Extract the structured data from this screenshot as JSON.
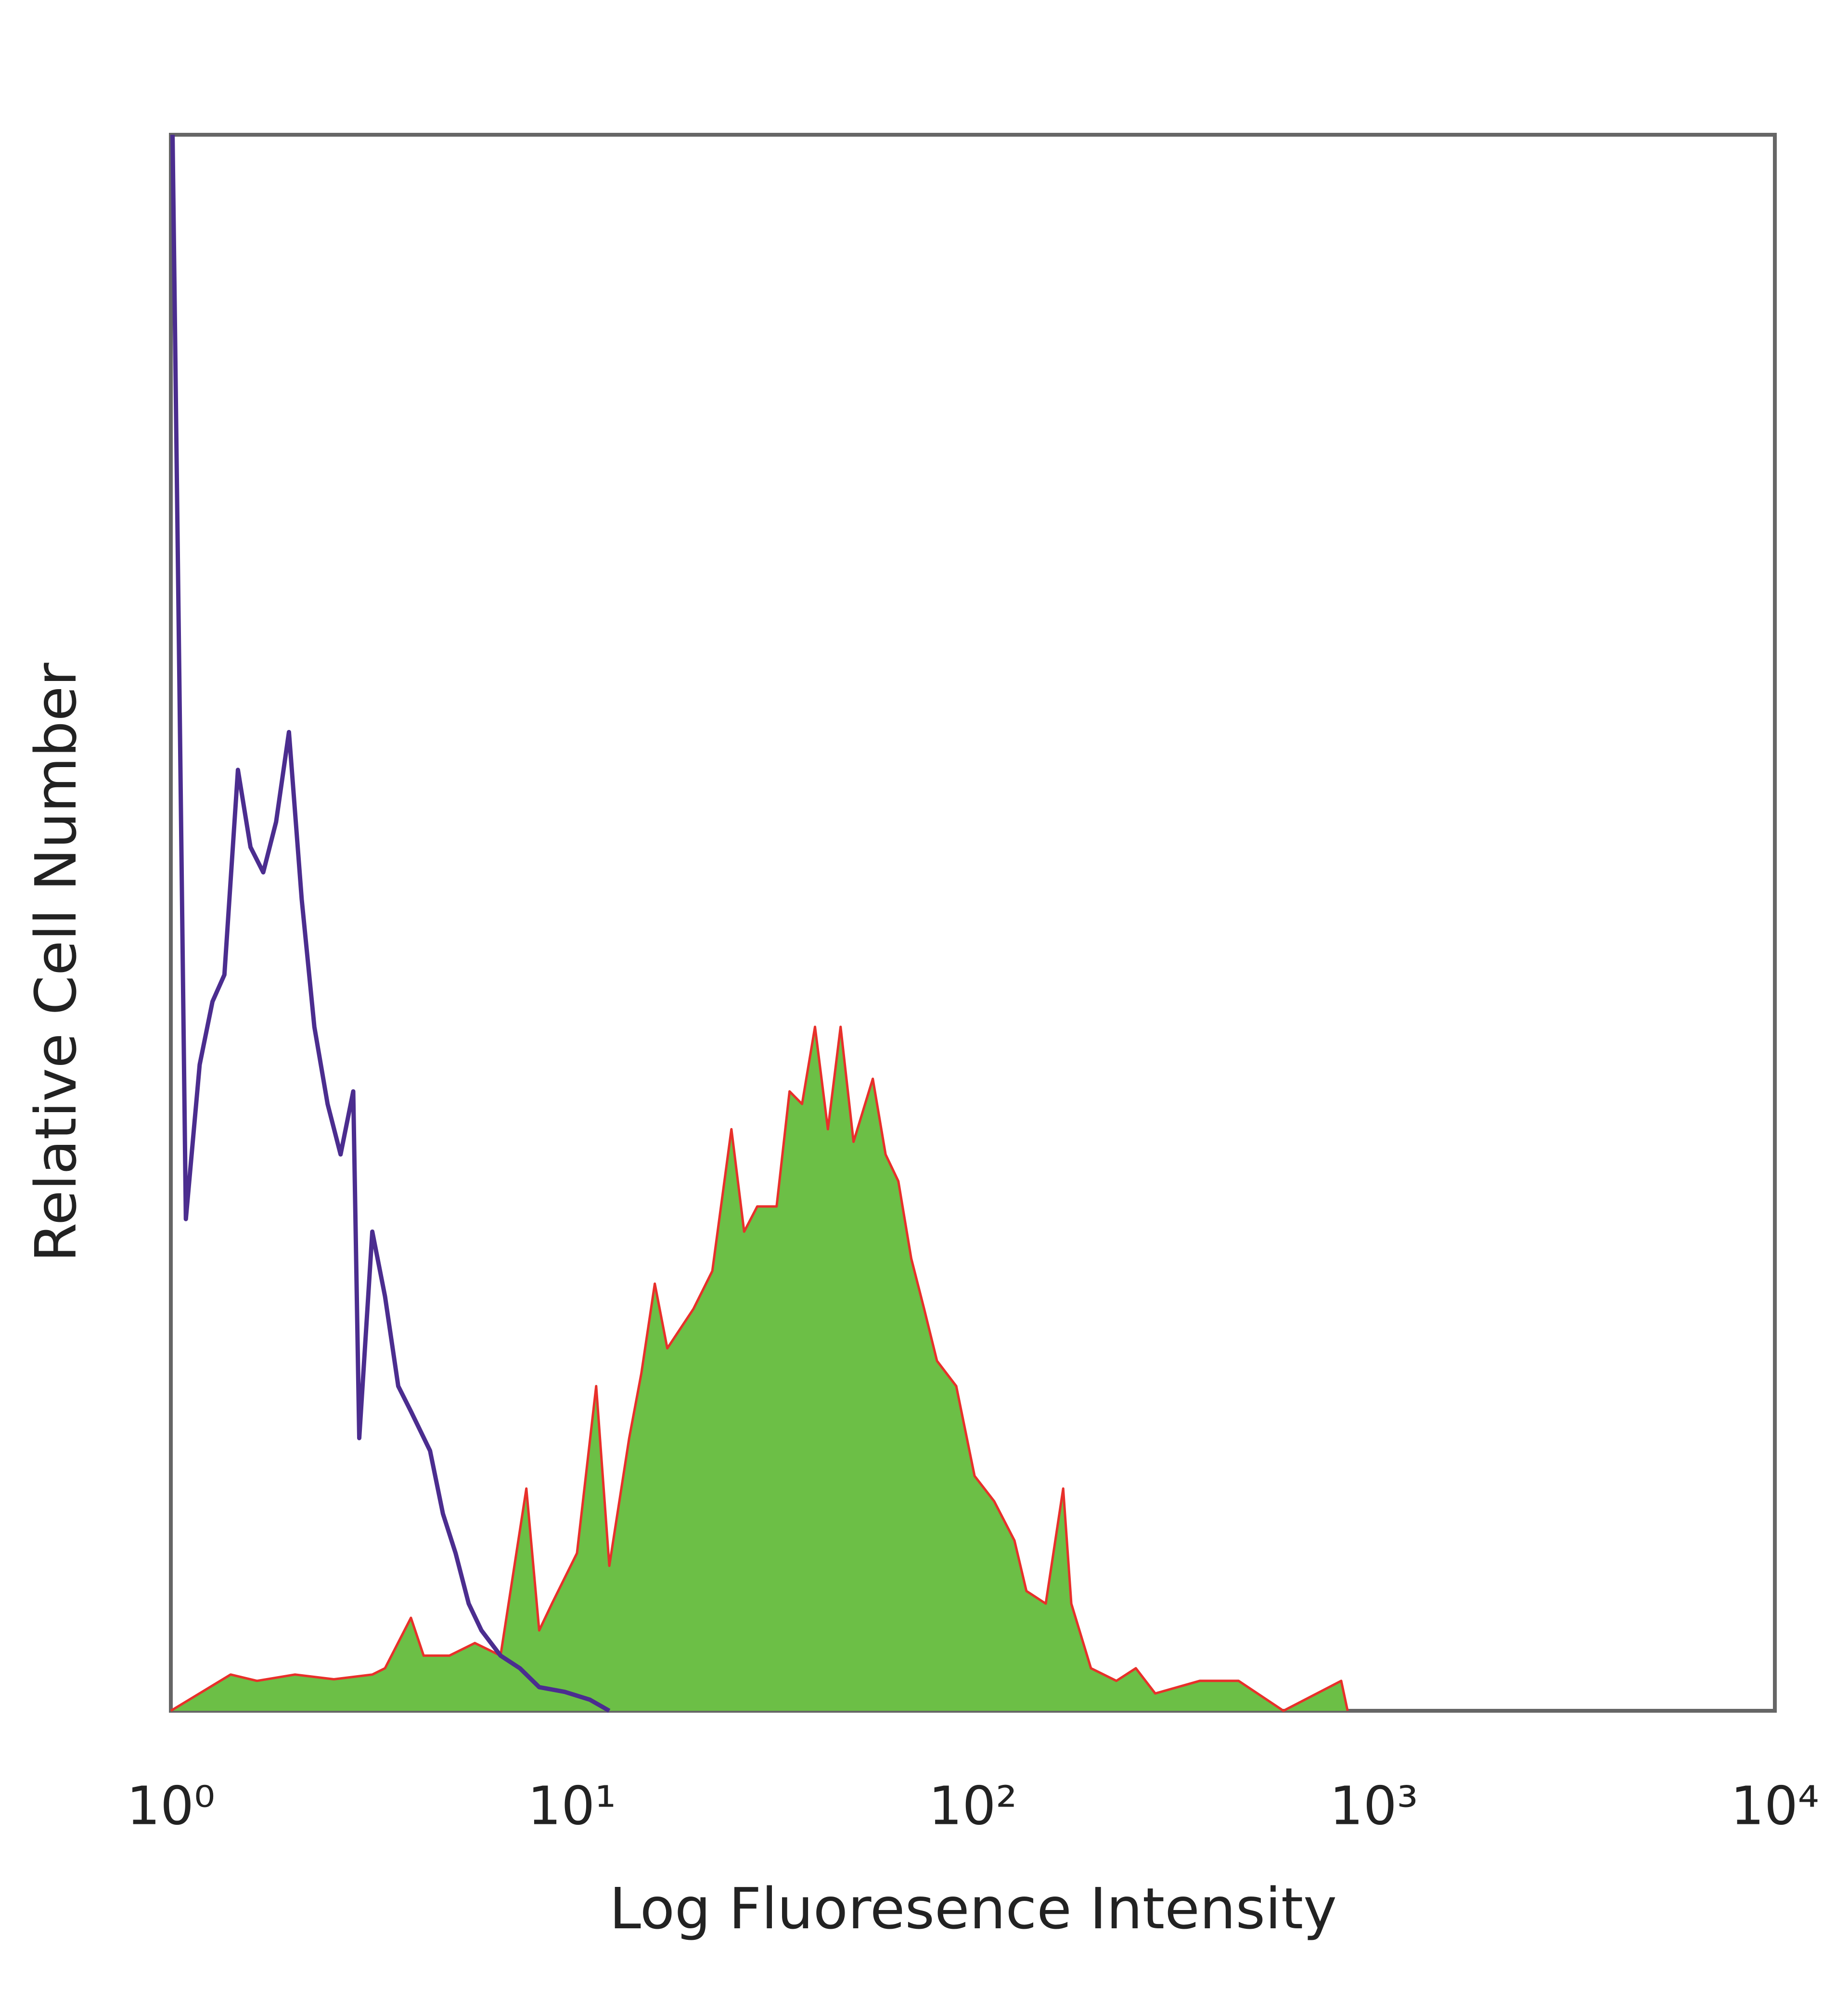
{
  "chart_data": {
    "type": "line",
    "xlabel": "Log Fluoresence Intensity",
    "ylabel": "Relative Cell Number",
    "xscale": "log",
    "xlim": [
      1,
      10000
    ],
    "xticks": [
      {
        "value": 1,
        "label": "10⁰"
      },
      {
        "value": 10,
        "label": "10¹"
      },
      {
        "value": 100,
        "label": "10²"
      },
      {
        "value": 1000,
        "label": "10³"
      },
      {
        "value": 10000,
        "label": "10⁴"
      }
    ],
    "ylim": [
      0,
      100
    ],
    "grid": false,
    "series": [
      {
        "color": "#e8302a",
        "fill": "#6cbf46",
        "x": [
          1.0,
          1.41,
          1.64,
          2.04,
          2.55,
          3.18,
          3.42,
          3.97,
          4.27,
          4.95,
          5.73,
          6.64,
          7.7,
          8.29,
          8.92,
          10.3,
          11.5,
          12.4,
          13.9,
          14.9,
          16.1,
          17.3,
          20.1,
          22.4,
          25.0,
          26.9,
          29.0,
          32.4,
          34.9,
          37.5,
          40.4,
          43.5,
          46.8,
          50.4,
          56.3,
          60.6,
          65.2,
          70.2,
          75.6,
          81.4,
          90.9,
          101,
          113,
          127,
          136,
          152,
          168,
          176,
          197,
          228,
          255,
          285,
          368,
          460,
          595,
          829,
          860
        ],
        "values": [
          0,
          2.3,
          1.9,
          2.3,
          2.0,
          2.3,
          2.7,
          5.9,
          3.5,
          3.5,
          4.3,
          3.5,
          14.1,
          5.1,
          6.8,
          10.0,
          20.6,
          9.2,
          17.3,
          21.4,
          27.1,
          23.0,
          25.5,
          27.9,
          36.9,
          30.4,
          32.0,
          32.0,
          39.3,
          38.5,
          43.4,
          36.9,
          43.4,
          36.1,
          40.1,
          35.3,
          33.6,
          28.7,
          25.5,
          22.2,
          20.6,
          14.9,
          13.3,
          10.8,
          7.6,
          6.8,
          14.1,
          6.8,
          2.7,
          1.9,
          2.7,
          1.1,
          1.9,
          1.9,
          0,
          1.9,
          0
        ]
      },
      {
        "color": "#4b2d8f",
        "x": [
          1.01,
          1.05,
          1.09,
          1.18,
          1.27,
          1.36,
          1.47,
          1.58,
          1.7,
          1.83,
          1.97,
          2.12,
          2.28,
          2.46,
          2.65,
          2.85,
          2.95,
          3.18,
          3.42,
          3.69,
          3.97,
          4.43,
          4.77,
          5.13,
          5.53,
          5.95,
          6.64,
          7.42,
          8.29,
          9.6,
          11.1,
          12.4
        ],
        "values": [
          100,
          65.4,
          31.2,
          41.0,
          45.0,
          46.7,
          59.7,
          54.8,
          53.2,
          56.4,
          62.1,
          51.5,
          43.4,
          38.5,
          35.3,
          39.3,
          17.3,
          30.4,
          26.3,
          20.6,
          19.0,
          16.5,
          12.5,
          10.0,
          6.8,
          5.1,
          3.5,
          2.7,
          1.5,
          1.2,
          0.7,
          0
        ]
      }
    ]
  }
}
